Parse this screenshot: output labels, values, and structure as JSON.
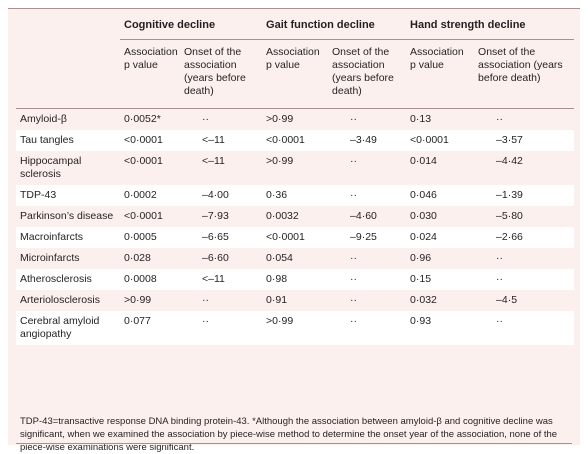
{
  "header": {
    "groups": [
      "Cognitive decline",
      "Gait function decline",
      "Hand strength decline"
    ],
    "subheaders": [
      "Association p value",
      "Onset of the association (years before death)",
      "Association p value",
      "Onset of the association (years before death)",
      "Association p value",
      "Onset of the association (years before death)"
    ]
  },
  "table": {
    "rows": [
      [
        "Amyloid-β",
        "0·0052*",
        "··",
        ">0·99",
        "··",
        "0·13",
        "··"
      ],
      [
        "Tau tangles",
        "<0·0001",
        "<–11",
        "<0·0001",
        "–3·49",
        "<0·0001",
        "–3·57"
      ],
      [
        "Hippocampal sclerosis",
        "<0·0001",
        "<–11",
        ">0·99",
        "··",
        "0·014",
        "–4·42"
      ],
      [
        "TDP-43",
        "0·0002",
        "–4·00",
        "0·36",
        "··",
        "0·046",
        "–1·39"
      ],
      [
        "Parkinson’s disease",
        "<0·0001",
        "–7·93",
        "0·0032",
        "–4·60",
        "0·030",
        "–5·80"
      ],
      [
        "Macroinfarcts",
        "0·0005",
        "–6·65",
        "<0·0001",
        "–9·25",
        "0·024",
        "–2·66"
      ],
      [
        "Microinfarcts",
        "0·028",
        "–6·60",
        "0·054",
        "··",
        "0·96",
        "··"
      ],
      [
        "Atherosclerosis",
        "0·0008",
        "<–11",
        "0·98",
        "··",
        "0·15",
        "··"
      ],
      [
        "Arteriolosclerosis",
        ">0·99",
        "··",
        "0·91",
        "··",
        "0·032",
        "–4·5"
      ],
      [
        "Cerebral amyloid angiopathy",
        "0·077",
        "··",
        ">0·99",
        "··",
        "0·93",
        "··"
      ]
    ]
  },
  "footnote": "TDP-43=transactive response DNA binding protein-43. *Although the association between amyloid-β and cognitive decline was significant, when we examined the association by piece-wise method to determine the onset year of the association, none of the piece-wise examinations were significant."
}
